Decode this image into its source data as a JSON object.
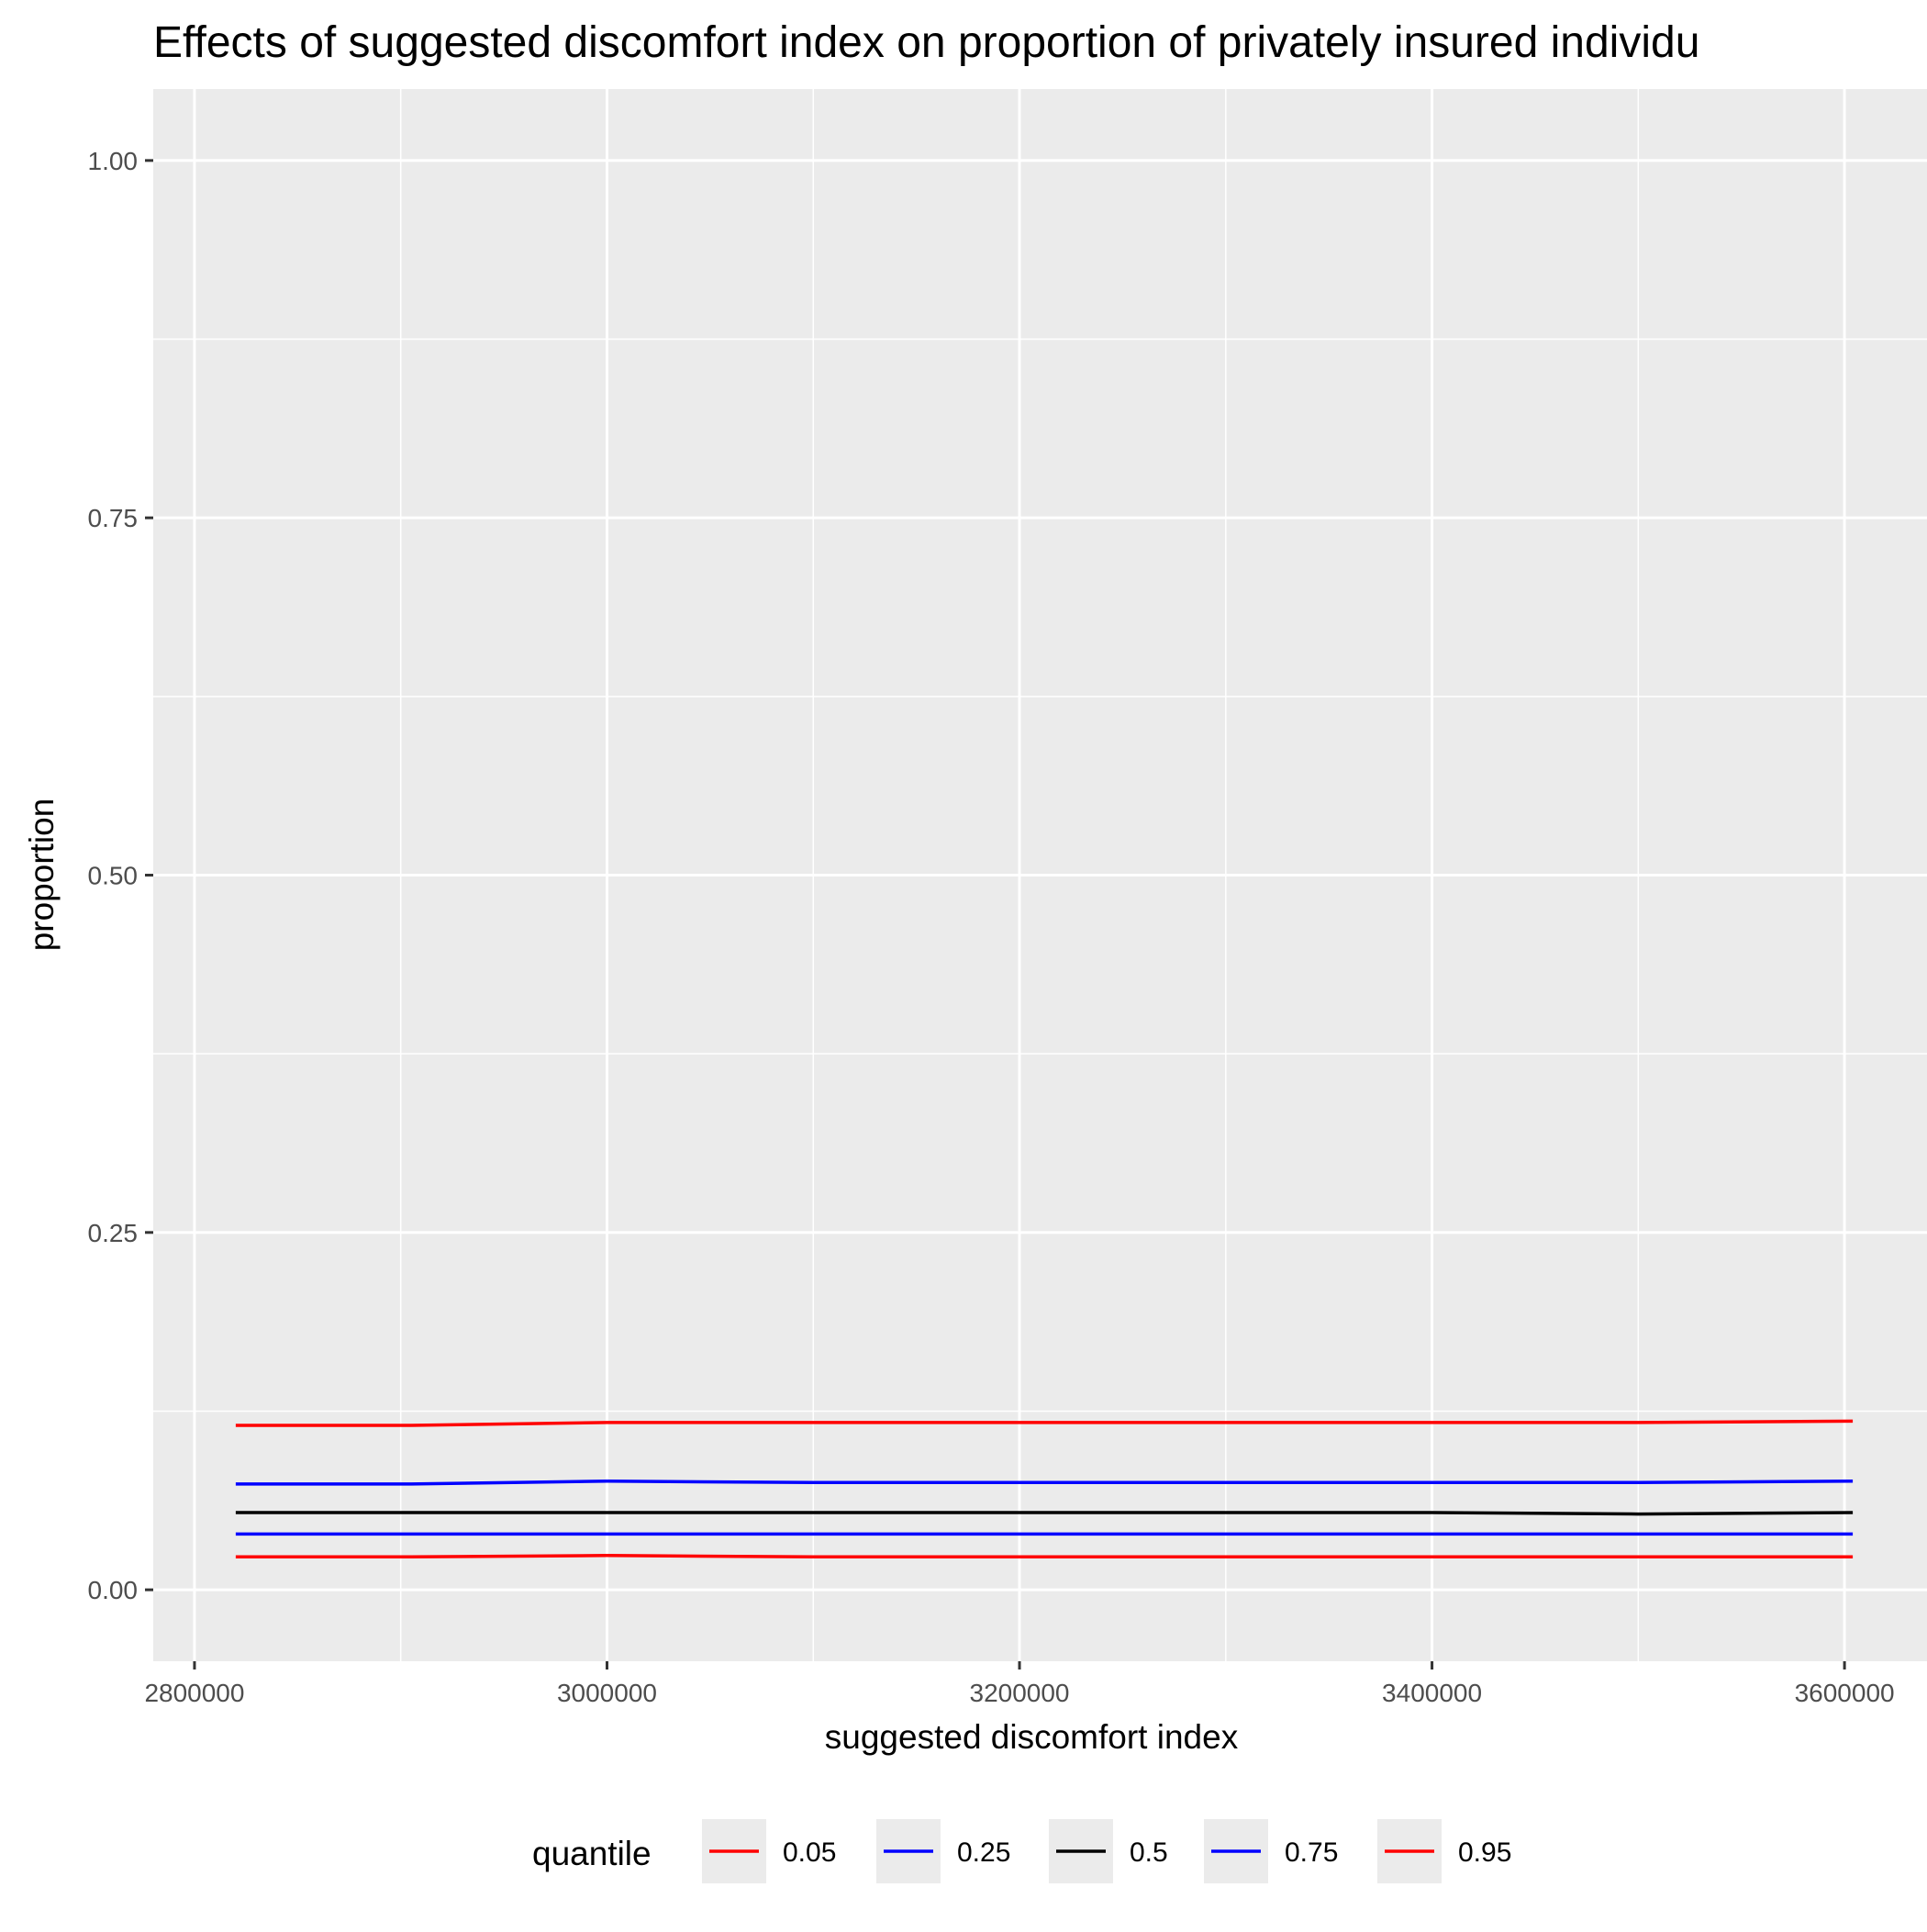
{
  "chart_data": {
    "type": "line",
    "title": "Effects of suggested discomfort index on proportion of privately insured individu",
    "xlabel": "suggested discomfort index",
    "ylabel": "proportion",
    "xlim": [
      2780000,
      3640000
    ],
    "ylim": [
      -0.05,
      1.05
    ],
    "x_ticks": [
      2800000,
      3000000,
      3200000,
      3400000,
      3600000
    ],
    "x_tick_labels": [
      "2800000",
      "3000000",
      "3200000",
      "3400000",
      "3600000"
    ],
    "y_ticks": [
      0.0,
      0.25,
      0.5,
      0.75,
      1.0
    ],
    "y_tick_labels": [
      "0.00",
      "0.25",
      "0.50",
      "0.75",
      "1.00"
    ],
    "grid": true,
    "legend_title": "quantile",
    "legend_position": "bottom",
    "series": [
      {
        "name": "0.05",
        "color": "#FF0000",
        "x": [
          2820000,
          2905000,
          3000000,
          3100000,
          3200000,
          3300000,
          3400000,
          3500000,
          3604000
        ],
        "y": [
          0.023,
          0.023,
          0.024,
          0.023,
          0.023,
          0.023,
          0.023,
          0.023,
          0.023
        ]
      },
      {
        "name": "0.25",
        "color": "#0000FF",
        "x": [
          2820000,
          2905000,
          3000000,
          3100000,
          3200000,
          3300000,
          3400000,
          3500000,
          3604000
        ],
        "y": [
          0.039,
          0.039,
          0.039,
          0.039,
          0.039,
          0.039,
          0.039,
          0.039,
          0.039
        ]
      },
      {
        "name": "0.5",
        "color": "#000000",
        "x": [
          2820000,
          2905000,
          3000000,
          3100000,
          3200000,
          3300000,
          3400000,
          3500000,
          3604000
        ],
        "y": [
          0.054,
          0.054,
          0.054,
          0.054,
          0.054,
          0.054,
          0.054,
          0.053,
          0.054
        ]
      },
      {
        "name": "0.75",
        "color": "#0000FF",
        "x": [
          2820000,
          2905000,
          3000000,
          3100000,
          3200000,
          3300000,
          3400000,
          3500000,
          3604000
        ],
        "y": [
          0.074,
          0.074,
          0.076,
          0.075,
          0.075,
          0.075,
          0.075,
          0.075,
          0.076
        ]
      },
      {
        "name": "0.95",
        "color": "#FF0000",
        "x": [
          2820000,
          2905000,
          3000000,
          3100000,
          3200000,
          3300000,
          3400000,
          3500000,
          3604000
        ],
        "y": [
          0.115,
          0.115,
          0.117,
          0.117,
          0.117,
          0.117,
          0.117,
          0.117,
          0.118
        ]
      }
    ]
  }
}
